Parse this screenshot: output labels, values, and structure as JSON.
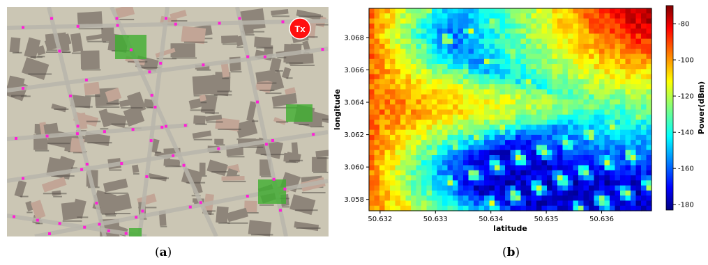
{
  "panel_a": {
    "tx_label": "Tx",
    "caption_prefix": "(",
    "caption_letter": "a",
    "caption_suffix": ")",
    "colors": {
      "ground": "#cbc6b4",
      "block": "#8e857a",
      "road": "#b9b6ac",
      "receiver": "#ff1fd6",
      "park": "#3fae2f",
      "tx": "#ff1010"
    }
  },
  "panel_b": {
    "caption_prefix": "(",
    "caption_letter": "b",
    "caption_suffix": ")"
  },
  "chart_data": {
    "type": "heatmap",
    "xlabel": "latitude",
    "ylabel": "longitude",
    "colorbar_label": "Power(dBm)",
    "colormap": "jet",
    "xlim": [
      50.6318,
      50.6369
    ],
    "ylim": [
      3.0573,
      3.0698
    ],
    "xticks": [
      "50.632",
      "50.633",
      "50.634",
      "50.635",
      "50.636"
    ],
    "yticks": [
      "3.058",
      "3.060",
      "3.062",
      "3.064",
      "3.066",
      "3.068"
    ],
    "colorbar_range": [
      -183,
      -70
    ],
    "colorbar_ticks": [
      "-80",
      "-100",
      "-120",
      "-140",
      "-160",
      "-180"
    ],
    "description_regions": [
      {
        "region": "top-right corner (near transmitter)",
        "power_dBm": -72
      },
      {
        "region": "left edge",
        "power_dBm": -95
      },
      {
        "region": "bottom-left area",
        "power_dBm": -100
      },
      {
        "region": "central low-coverage area",
        "power_dBm": -178
      },
      {
        "region": "street corridors",
        "power_dBm": -130
      }
    ]
  }
}
